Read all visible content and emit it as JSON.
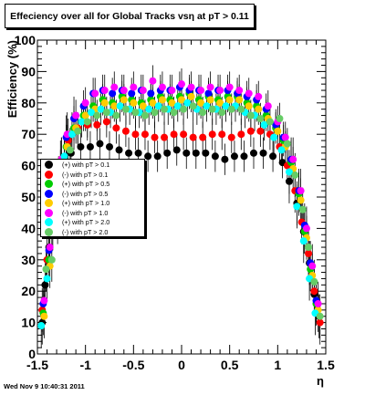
{
  "footer_timestamp": "Wed Nov  9 10:40:31 2011",
  "chart_data": {
    "type": "scatter",
    "title": "Effeciency over all for Global Tracks vsη at pT > 0.11",
    "xlabel": "η",
    "ylabel": "Efficiency (%)",
    "xlim": [
      -1.5,
      1.5
    ],
    "ylim": [
      0,
      100
    ],
    "x_ticks": [
      "-1.5",
      "-1",
      "-0.5",
      "0",
      "0.5",
      "1",
      "1.5"
    ],
    "y_ticks": [
      "0",
      "10",
      "20",
      "30",
      "40",
      "50",
      "60",
      "70",
      "80",
      "90",
      "100"
    ],
    "legend_position": "left",
    "series": [
      {
        "name": "(+) with pT > 0.1",
        "color": "#000000",
        "points": [
          [
            -1.45,
            10
          ],
          [
            -1.42,
            22
          ],
          [
            -1.38,
            34
          ],
          [
            -1.32,
            47
          ],
          [
            -1.28,
            56
          ],
          [
            -1.22,
            61
          ],
          [
            -1.15,
            64
          ],
          [
            -1.05,
            66
          ],
          [
            -0.95,
            66
          ],
          [
            -0.85,
            67
          ],
          [
            -0.75,
            66
          ],
          [
            -0.65,
            65
          ],
          [
            -0.55,
            64
          ],
          [
            -0.45,
            64
          ],
          [
            -0.35,
            63
          ],
          [
            -0.25,
            63
          ],
          [
            -0.15,
            64
          ],
          [
            -0.05,
            65
          ],
          [
            0.05,
            64
          ],
          [
            0.15,
            64
          ],
          [
            0.25,
            64
          ],
          [
            0.35,
            63
          ],
          [
            0.45,
            62
          ],
          [
            0.55,
            63
          ],
          [
            0.65,
            63
          ],
          [
            0.75,
            64
          ],
          [
            0.85,
            64
          ],
          [
            0.95,
            63
          ],
          [
            1.05,
            61
          ],
          [
            1.12,
            55
          ],
          [
            1.2,
            48
          ],
          [
            1.27,
            39
          ],
          [
            1.33,
            29
          ],
          [
            1.38,
            19
          ],
          [
            1.43,
            12
          ]
        ]
      },
      {
        "name": "(-) with pT > 0.1",
        "color": "#ff0000",
        "points": [
          [
            -1.45,
            14
          ],
          [
            -1.4,
            30
          ],
          [
            -1.35,
            44
          ],
          [
            -1.3,
            55
          ],
          [
            -1.25,
            62
          ],
          [
            -1.18,
            68
          ],
          [
            -1.08,
            72
          ],
          [
            -0.98,
            73
          ],
          [
            -0.88,
            73
          ],
          [
            -0.78,
            74
          ],
          [
            -0.68,
            72
          ],
          [
            -0.58,
            71
          ],
          [
            -0.48,
            70
          ],
          [
            -0.38,
            70
          ],
          [
            -0.28,
            69
          ],
          [
            -0.18,
            69
          ],
          [
            -0.08,
            70
          ],
          [
            0.02,
            70
          ],
          [
            0.12,
            69
          ],
          [
            0.22,
            69
          ],
          [
            0.32,
            70
          ],
          [
            0.42,
            70
          ],
          [
            0.52,
            69
          ],
          [
            0.62,
            70
          ],
          [
            0.72,
            71
          ],
          [
            0.82,
            71
          ],
          [
            0.92,
            70
          ],
          [
            1.02,
            66
          ],
          [
            1.1,
            60
          ],
          [
            1.18,
            52
          ],
          [
            1.25,
            42
          ],
          [
            1.32,
            32
          ],
          [
            1.38,
            20
          ],
          [
            1.44,
            10
          ]
        ]
      },
      {
        "name": "(+) with pT > 0.5",
        "color": "#00cc00",
        "points": [
          [
            -1.44,
            13
          ],
          [
            -1.38,
            30
          ],
          [
            -1.32,
            46
          ],
          [
            -1.26,
            58
          ],
          [
            -1.2,
            66
          ],
          [
            -1.12,
            72
          ],
          [
            -1.02,
            76
          ],
          [
            -0.92,
            79
          ],
          [
            -0.82,
            81
          ],
          [
            -0.72,
            80
          ],
          [
            -0.62,
            82
          ],
          [
            -0.52,
            81
          ],
          [
            -0.42,
            80
          ],
          [
            -0.32,
            81
          ],
          [
            -0.22,
            82
          ],
          [
            -0.12,
            81
          ],
          [
            -0.02,
            82
          ],
          [
            0.08,
            83
          ],
          [
            0.18,
            81
          ],
          [
            0.28,
            82
          ],
          [
            0.38,
            81
          ],
          [
            0.48,
            82
          ],
          [
            0.58,
            82
          ],
          [
            0.68,
            80
          ],
          [
            0.78,
            79
          ],
          [
            0.88,
            76
          ],
          [
            0.98,
            72
          ],
          [
            1.06,
            68
          ],
          [
            1.14,
            61
          ],
          [
            1.22,
            51
          ],
          [
            1.28,
            39
          ],
          [
            1.34,
            27
          ],
          [
            1.4,
            16
          ]
        ]
      },
      {
        "name": "(-) with pT > 0.5",
        "color": "#0000ff",
        "points": [
          [
            -1.44,
            16
          ],
          [
            -1.38,
            33
          ],
          [
            -1.32,
            49
          ],
          [
            -1.26,
            61
          ],
          [
            -1.2,
            69
          ],
          [
            -1.12,
            75
          ],
          [
            -1.02,
            79
          ],
          [
            -0.92,
            83
          ],
          [
            -0.82,
            84
          ],
          [
            -0.72,
            83
          ],
          [
            -0.62,
            84
          ],
          [
            -0.52,
            83
          ],
          [
            -0.42,
            84
          ],
          [
            -0.32,
            83
          ],
          [
            -0.22,
            84
          ],
          [
            -0.12,
            84
          ],
          [
            -0.02,
            85
          ],
          [
            0.08,
            84
          ],
          [
            0.18,
            84
          ],
          [
            0.28,
            83
          ],
          [
            0.38,
            84
          ],
          [
            0.48,
            84
          ],
          [
            0.58,
            83
          ],
          [
            0.68,
            82
          ],
          [
            0.78,
            81
          ],
          [
            0.88,
            78
          ],
          [
            0.98,
            73
          ],
          [
            1.06,
            69
          ],
          [
            1.14,
            62
          ],
          [
            1.22,
            52
          ],
          [
            1.28,
            41
          ],
          [
            1.34,
            29
          ],
          [
            1.4,
            17
          ]
        ]
      },
      {
        "name": "(+) with pT > 1.0",
        "color": "#ffcc00",
        "points": [
          [
            -1.43,
            12
          ],
          [
            -1.37,
            28
          ],
          [
            -1.31,
            44
          ],
          [
            -1.25,
            57
          ],
          [
            -1.19,
            66
          ],
          [
            -1.1,
            72
          ],
          [
            -1.0,
            76
          ],
          [
            -0.9,
            78
          ],
          [
            -0.8,
            80
          ],
          [
            -0.7,
            79
          ],
          [
            -0.6,
            81
          ],
          [
            -0.5,
            80
          ],
          [
            -0.4,
            79
          ],
          [
            -0.3,
            80
          ],
          [
            -0.2,
            81
          ],
          [
            -0.1,
            80
          ],
          [
            0.0,
            81
          ],
          [
            0.1,
            82
          ],
          [
            0.2,
            80
          ],
          [
            0.3,
            81
          ],
          [
            0.4,
            80
          ],
          [
            0.5,
            81
          ],
          [
            0.6,
            81
          ],
          [
            0.7,
            79
          ],
          [
            0.8,
            78
          ],
          [
            0.9,
            75
          ],
          [
            1.0,
            71
          ],
          [
            1.08,
            66
          ],
          [
            1.16,
            59
          ],
          [
            1.24,
            49
          ],
          [
            1.3,
            37
          ],
          [
            1.36,
            25
          ],
          [
            1.42,
            14
          ]
        ]
      },
      {
        "name": "(-) with pT > 1.0",
        "color": "#ff00ff",
        "points": [
          [
            -1.43,
            17
          ],
          [
            -1.37,
            34
          ],
          [
            -1.31,
            50
          ],
          [
            -1.25,
            62
          ],
          [
            -1.19,
            70
          ],
          [
            -1.1,
            76
          ],
          [
            -1.0,
            80
          ],
          [
            -0.9,
            83
          ],
          [
            -0.8,
            84
          ],
          [
            -0.7,
            85
          ],
          [
            -0.6,
            84
          ],
          [
            -0.5,
            85
          ],
          [
            -0.4,
            84
          ],
          [
            -0.3,
            87
          ],
          [
            -0.2,
            85
          ],
          [
            -0.1,
            84
          ],
          [
            0.0,
            86
          ],
          [
            0.1,
            85
          ],
          [
            0.2,
            84
          ],
          [
            0.3,
            85
          ],
          [
            0.4,
            84
          ],
          [
            0.5,
            85
          ],
          [
            0.6,
            84
          ],
          [
            0.7,
            83
          ],
          [
            0.8,
            82
          ],
          [
            0.9,
            79
          ],
          [
            1.0,
            74
          ],
          [
            1.08,
            69
          ],
          [
            1.16,
            62
          ],
          [
            1.24,
            52
          ],
          [
            1.3,
            40
          ],
          [
            1.36,
            28
          ],
          [
            1.42,
            16
          ]
        ]
      },
      {
        "name": "(+) with pT > 2.0",
        "color": "#00ffff",
        "points": [
          [
            -1.46,
            9
          ],
          [
            -1.4,
            24
          ],
          [
            -1.34,
            40
          ],
          [
            -1.28,
            54
          ],
          [
            -1.22,
            63
          ],
          [
            -1.14,
            70
          ],
          [
            -1.04,
            74
          ],
          [
            -0.94,
            77
          ],
          [
            -0.84,
            78
          ],
          [
            -0.74,
            77
          ],
          [
            -0.64,
            79
          ],
          [
            -0.54,
            78
          ],
          [
            -0.44,
            77
          ],
          [
            -0.34,
            78
          ],
          [
            -0.24,
            79
          ],
          [
            -0.14,
            78
          ],
          [
            -0.04,
            79
          ],
          [
            0.06,
            80
          ],
          [
            0.16,
            78
          ],
          [
            0.26,
            79
          ],
          [
            0.36,
            78
          ],
          [
            0.46,
            79
          ],
          [
            0.56,
            79
          ],
          [
            0.66,
            77
          ],
          [
            0.76,
            76
          ],
          [
            0.86,
            73
          ],
          [
            0.96,
            69
          ],
          [
            1.04,
            65
          ],
          [
            1.12,
            58
          ],
          [
            1.2,
            47
          ],
          [
            1.27,
            36
          ],
          [
            1.33,
            24
          ],
          [
            1.39,
            13
          ]
        ]
      },
      {
        "name": "(-) with pT > 2.0",
        "color": "#66cc66",
        "points": [
          [
            -1.41,
            27
          ],
          [
            -1.35,
            30
          ],
          [
            -1.29,
            42
          ],
          [
            -1.23,
            55
          ],
          [
            -1.16,
            65
          ],
          [
            -1.08,
            71
          ],
          [
            -0.98,
            74
          ],
          [
            -0.88,
            76
          ],
          [
            -0.78,
            77
          ],
          [
            -0.68,
            76
          ],
          [
            -0.58,
            78
          ],
          [
            -0.48,
            77
          ],
          [
            -0.38,
            76
          ],
          [
            -0.28,
            77
          ],
          [
            -0.18,
            78
          ],
          [
            -0.08,
            77
          ],
          [
            0.02,
            78
          ],
          [
            0.12,
            79
          ],
          [
            0.22,
            77
          ],
          [
            0.32,
            78
          ],
          [
            0.42,
            77
          ],
          [
            0.52,
            78
          ],
          [
            0.62,
            78
          ],
          [
            0.72,
            76
          ],
          [
            0.82,
            75
          ],
          [
            0.92,
            74
          ],
          [
            1.02,
            75
          ],
          [
            1.1,
            67
          ],
          [
            1.18,
            57
          ],
          [
            1.26,
            46
          ],
          [
            1.32,
            34
          ],
          [
            1.38,
            23
          ],
          [
            1.44,
            12
          ]
        ]
      }
    ]
  }
}
